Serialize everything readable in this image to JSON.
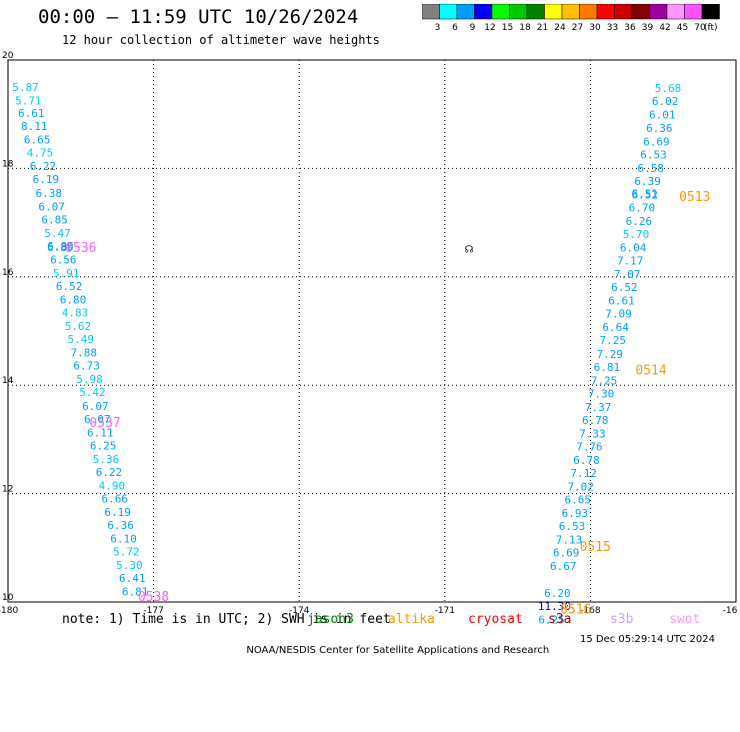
{
  "header": {
    "title": "00:00 – 11:59 UTC 10/26/2024",
    "subtitle": "12 hour collection of altimeter wave heights"
  },
  "colorbar": {
    "unit": "(ft)",
    "bins": [
      {
        "label": "3",
        "color": "#808080"
      },
      {
        "label": "6",
        "color": "#00ffff"
      },
      {
        "label": "9",
        "color": "#00a0ff"
      },
      {
        "label": "12",
        "color": "#0000ff"
      },
      {
        "label": "15",
        "color": "#00ff00"
      },
      {
        "label": "18",
        "color": "#00c800"
      },
      {
        "label": "21",
        "color": "#008200"
      },
      {
        "label": "24",
        "color": "#ffff00"
      },
      {
        "label": "27",
        "color": "#ffbe00"
      },
      {
        "label": "30",
        "color": "#ff7800"
      },
      {
        "label": "33",
        "color": "#ff0000"
      },
      {
        "label": "36",
        "color": "#c80000"
      },
      {
        "label": "39",
        "color": "#820000"
      },
      {
        "label": "42",
        "color": "#a000a0"
      },
      {
        "label": "45",
        "color": "#ff96ff"
      },
      {
        "label": "70",
        "color": "#ff50ff"
      },
      {
        "label": "",
        "color": "#000000"
      }
    ]
  },
  "chart_data": {
    "type": "scatter",
    "xlabel": "",
    "ylabel": "",
    "xlim": [
      -180,
      -165
    ],
    "ylim": [
      10,
      20
    ],
    "x_ticks": [
      "-180",
      "-177",
      "-174",
      "-171",
      "-168",
      "-16"
    ],
    "y_ticks": [
      "20",
      "18",
      "16",
      "14",
      "12",
      "10"
    ],
    "grid": true,
    "series": [
      {
        "satellite": "left track",
        "points": [
          {
            "lon": -179.64,
            "lat": 19.5,
            "value": "5.87",
            "color": "#00c8ff"
          },
          {
            "lon": -179.58,
            "lat": 19.25,
            "value": "5.71",
            "color": "#00c8ff"
          },
          {
            "lon": -179.52,
            "lat": 19.02,
            "value": "6.61",
            "color": "#00a0ff"
          },
          {
            "lon": -179.46,
            "lat": 18.78,
            "value": "8.11",
            "color": "#00a0ff"
          },
          {
            "lon": -179.4,
            "lat": 18.53,
            "value": "6.65",
            "color": "#00a0ff"
          },
          {
            "lon": -179.34,
            "lat": 18.29,
            "value": "4.75",
            "color": "#00c8ff"
          },
          {
            "lon": -179.28,
            "lat": 18.04,
            "value": "6.22",
            "color": "#00a0ff"
          },
          {
            "lon": -179.22,
            "lat": 17.8,
            "value": "6.19",
            "color": "#00a0ff"
          },
          {
            "lon": -179.16,
            "lat": 17.55,
            "value": "6.38",
            "color": "#00a0ff"
          },
          {
            "lon": -179.1,
            "lat": 17.3,
            "value": "6.07",
            "color": "#00a0ff"
          },
          {
            "lon": -179.04,
            "lat": 17.06,
            "value": "6.85",
            "color": "#00a0ff"
          },
          {
            "lon": -178.98,
            "lat": 16.81,
            "value": "5.47",
            "color": "#00c8ff"
          },
          {
            "lon": -178.92,
            "lat": 16.57,
            "value": "6.88",
            "color": "#00a0ff"
          },
          {
            "lon": -178.92,
            "lat": 16.55,
            "value": "6.89",
            "color": "#00a0ff"
          },
          {
            "lon": -178.86,
            "lat": 16.32,
            "value": "6.56",
            "color": "#00a0ff"
          },
          {
            "lon": -178.8,
            "lat": 16.07,
            "value": "5.91",
            "color": "#00c8ff"
          },
          {
            "lon": -178.74,
            "lat": 15.83,
            "value": "6.52",
            "color": "#00a0ff"
          },
          {
            "lon": -178.66,
            "lat": 15.58,
            "value": "6.80",
            "color": "#00a0ff"
          },
          {
            "lon": -178.62,
            "lat": 15.34,
            "value": "4.83",
            "color": "#00c8ff"
          },
          {
            "lon": -178.56,
            "lat": 15.09,
            "value": "5.62",
            "color": "#00c8ff"
          },
          {
            "lon": -178.5,
            "lat": 14.85,
            "value": "5.49",
            "color": "#00c8ff"
          },
          {
            "lon": -178.44,
            "lat": 14.6,
            "value": "7.88",
            "color": "#00a0ff"
          },
          {
            "lon": -178.38,
            "lat": 14.36,
            "value": "6.73",
            "color": "#00a0ff"
          },
          {
            "lon": -178.32,
            "lat": 14.11,
            "value": "5.98",
            "color": "#00c8ff"
          },
          {
            "lon": -178.26,
            "lat": 13.87,
            "value": "5.42",
            "color": "#00c8ff"
          },
          {
            "lon": -178.2,
            "lat": 13.62,
            "value": "6.07",
            "color": "#00a0ff"
          },
          {
            "lon": -178.16,
            "lat": 13.38,
            "value": "6.07",
            "color": "#00a0ff"
          },
          {
            "lon": -178.1,
            "lat": 13.13,
            "value": "6.11",
            "color": "#00a0ff"
          },
          {
            "lon": -178.04,
            "lat": 12.89,
            "value": "6.25",
            "color": "#00a0ff"
          },
          {
            "lon": -177.98,
            "lat": 12.64,
            "value": "5.36",
            "color": "#00c8ff"
          },
          {
            "lon": -177.92,
            "lat": 12.4,
            "value": "6.22",
            "color": "#00a0ff"
          },
          {
            "lon": -177.86,
            "lat": 12.15,
            "value": "4.90",
            "color": "#00c8ff"
          },
          {
            "lon": -177.8,
            "lat": 11.91,
            "value": "6.66",
            "color": "#00a0ff"
          },
          {
            "lon": -177.74,
            "lat": 11.66,
            "value": "6.19",
            "color": "#00a0ff"
          },
          {
            "lon": -177.68,
            "lat": 11.42,
            "value": "6.36",
            "color": "#00a0ff"
          },
          {
            "lon": -177.62,
            "lat": 11.17,
            "value": "6.10",
            "color": "#00a0ff"
          },
          {
            "lon": -177.56,
            "lat": 10.93,
            "value": "5.72",
            "color": "#00c8ff"
          },
          {
            "lon": -177.5,
            "lat": 10.68,
            "value": "5.30",
            "color": "#00c8ff"
          },
          {
            "lon": -177.44,
            "lat": 10.44,
            "value": "6.41",
            "color": "#00a0ff"
          },
          {
            "lon": -177.38,
            "lat": 10.19,
            "value": "6.81",
            "color": "#00a0ff"
          }
        ]
      },
      {
        "satellite": "right track",
        "points": [
          {
            "lon": -166.4,
            "lat": 19.48,
            "value": "5.68",
            "color": "#00c8ff"
          },
          {
            "lon": -166.46,
            "lat": 19.24,
            "value": "6.02",
            "color": "#00a0ff"
          },
          {
            "lon": -166.52,
            "lat": 18.99,
            "value": "6.01",
            "color": "#00a0ff"
          },
          {
            "lon": -166.58,
            "lat": 18.75,
            "value": "6.36",
            "color": "#00a0ff"
          },
          {
            "lon": -166.64,
            "lat": 18.5,
            "value": "6.69",
            "color": "#00a0ff"
          },
          {
            "lon": -166.7,
            "lat": 18.26,
            "value": "6.53",
            "color": "#00a0ff"
          },
          {
            "lon": -166.76,
            "lat": 18.01,
            "value": "6.58",
            "color": "#00a0ff"
          },
          {
            "lon": -166.82,
            "lat": 17.77,
            "value": "6.39",
            "color": "#00a0ff"
          },
          {
            "lon": -166.88,
            "lat": 17.54,
            "value": "6.51",
            "color": "#00a0ff"
          },
          {
            "lon": -166.88,
            "lat": 17.52,
            "value": "6.52",
            "color": "#00a0ff"
          },
          {
            "lon": -166.94,
            "lat": 17.28,
            "value": "6.70",
            "color": "#00a0ff"
          },
          {
            "lon": -167.0,
            "lat": 17.03,
            "value": "6.26",
            "color": "#00a0ff"
          },
          {
            "lon": -167.06,
            "lat": 16.79,
            "value": "5.70",
            "color": "#00c8ff"
          },
          {
            "lon": -167.12,
            "lat": 16.54,
            "value": "6.04",
            "color": "#00a0ff"
          },
          {
            "lon": -167.18,
            "lat": 16.3,
            "value": "7.17",
            "color": "#00a0ff"
          },
          {
            "lon": -167.24,
            "lat": 16.05,
            "value": "7.07",
            "color": "#00a0ff"
          },
          {
            "lon": -167.3,
            "lat": 15.81,
            "value": "6.52",
            "color": "#00a0ff"
          },
          {
            "lon": -167.36,
            "lat": 15.56,
            "value": "6.61",
            "color": "#00a0ff"
          },
          {
            "lon": -167.42,
            "lat": 15.32,
            "value": "7.09",
            "color": "#00a0ff"
          },
          {
            "lon": -167.48,
            "lat": 15.07,
            "value": "6.64",
            "color": "#00a0ff"
          },
          {
            "lon": -167.54,
            "lat": 14.83,
            "value": "7.25",
            "color": "#00a0ff"
          },
          {
            "lon": -167.6,
            "lat": 14.58,
            "value": "7.29",
            "color": "#00a0ff"
          },
          {
            "lon": -167.66,
            "lat": 14.34,
            "value": "6.81",
            "color": "#00a0ff"
          },
          {
            "lon": -167.72,
            "lat": 14.09,
            "value": "7.25",
            "color": "#00a0ff"
          },
          {
            "lon": -167.78,
            "lat": 13.85,
            "value": "7.30",
            "color": "#00a0ff"
          },
          {
            "lon": -167.84,
            "lat": 13.6,
            "value": "7.37",
            "color": "#00a0ff"
          },
          {
            "lon": -167.9,
            "lat": 13.36,
            "value": "6.78",
            "color": "#00a0ff"
          },
          {
            "lon": -167.96,
            "lat": 13.11,
            "value": "7.33",
            "color": "#00a0ff"
          },
          {
            "lon": -168.02,
            "lat": 12.87,
            "value": "7.76",
            "color": "#00a0ff"
          },
          {
            "lon": -168.08,
            "lat": 12.62,
            "value": "6.78",
            "color": "#00a0ff"
          },
          {
            "lon": -168.14,
            "lat": 12.38,
            "value": "7.12",
            "color": "#00a0ff"
          },
          {
            "lon": -168.2,
            "lat": 12.13,
            "value": "7.02",
            "color": "#00a0ff"
          },
          {
            "lon": -168.26,
            "lat": 11.89,
            "value": "6.65",
            "color": "#00a0ff"
          },
          {
            "lon": -168.32,
            "lat": 11.64,
            "value": "6.93",
            "color": "#00a0ff"
          },
          {
            "lon": -168.38,
            "lat": 11.4,
            "value": "6.53",
            "color": "#00a0ff"
          },
          {
            "lon": -168.44,
            "lat": 11.15,
            "value": "7.13",
            "color": "#00a0ff"
          },
          {
            "lon": -168.5,
            "lat": 10.91,
            "value": "6.69",
            "color": "#00a0ff"
          },
          {
            "lon": -168.56,
            "lat": 10.66,
            "value": "6.67",
            "color": "#00a0ff"
          },
          {
            "lon": -168.68,
            "lat": 10.17,
            "value": "6.20",
            "color": "#00a0ff"
          },
          {
            "lon": -168.74,
            "lat": 9.93,
            "value": "11.30",
            "color": "#0000c8"
          },
          {
            "lon": -168.8,
            "lat": 9.68,
            "value": "6.25",
            "color": "#00a0ff"
          }
        ]
      }
    ],
    "pass_labels": [
      {
        "text": "0536",
        "lon": -178.5,
        "lat": 16.55,
        "color": "#ff60ff"
      },
      {
        "text": "0537",
        "lon": -178.0,
        "lat": 13.32,
        "color": "#ff60ff"
      },
      {
        "text": "0538",
        "lon": -177.0,
        "lat": 10.11,
        "color": "#ff60ff"
      },
      {
        "text": "0513",
        "lon": -165.85,
        "lat": 17.49,
        "color": "#ff9600"
      },
      {
        "text": "0514",
        "lon": -166.75,
        "lat": 14.29,
        "color": "#ff9600"
      },
      {
        "text": "0515",
        "lon": -167.9,
        "lat": 11.03,
        "color": "#ff9600"
      },
      {
        "text": "0516",
        "lon": -168.3,
        "lat": 9.88,
        "color": "#ff9600"
      }
    ],
    "marker": {
      "lon": -170.5,
      "lat": 16.52,
      "text": "☊"
    }
  },
  "note": {
    "text": "note: 1) Time is in UTC; 2) SWH is in feet",
    "satellites": [
      {
        "name": "jason3",
        "color": "#008200"
      },
      {
        "name": "altika",
        "color": "#ff9600"
      },
      {
        "name": "cryosat",
        "color": "#ff0000"
      },
      {
        "name": "s3a",
        "color": "#a00000"
      },
      {
        "name": "s3b",
        "color": "#c8a0ff"
      },
      {
        "name": "swot",
        "color": "#ff96ff"
      }
    ]
  },
  "footer": {
    "credit": "NOAA/NESDIS Center for Satellite Applications and Research",
    "timestamp": "15 Dec 05:29:14 UTC 2024"
  }
}
